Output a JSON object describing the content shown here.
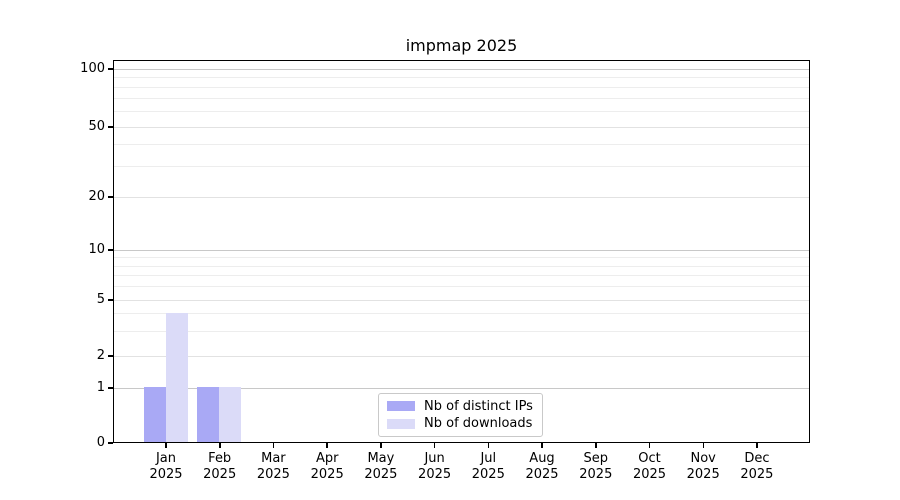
{
  "chart_data": {
    "type": "bar",
    "title": "impmap 2025",
    "categories": [
      "Jan",
      "Feb",
      "Mar",
      "Apr",
      "May",
      "Jun",
      "Jul",
      "Aug",
      "Sep",
      "Oct",
      "Nov",
      "Dec"
    ],
    "year": "2025",
    "series": [
      {
        "name": "Nb of distinct IPs",
        "color": "#a9a9f5",
        "values": [
          1,
          1,
          0,
          0,
          0,
          0,
          0,
          0,
          0,
          0,
          0,
          0
        ]
      },
      {
        "name": "Nb of downloads",
        "color": "#dbdbf8",
        "values": [
          4,
          1,
          0,
          0,
          0,
          0,
          0,
          0,
          0,
          0,
          0,
          0
        ]
      }
    ],
    "xlabel": "",
    "ylabel": "",
    "yaxis": {
      "scale": "log-like",
      "range": [
        0,
        100
      ],
      "ticks": [
        0,
        1,
        2,
        5,
        10,
        20,
        50,
        100
      ],
      "minor_ticks": [
        3,
        4,
        6,
        7,
        8,
        9,
        30,
        40,
        60,
        70,
        80,
        90
      ],
      "decade_ticks": [
        1,
        10,
        100
      ]
    },
    "grid": true,
    "legend": {
      "position": "inside-bottom-center"
    },
    "colors": {
      "grid_major": "#c8c8c8",
      "grid_mid": "#e2e2e2",
      "grid_minor": "#ededed",
      "axis": "#000000",
      "background": "#ffffff"
    }
  }
}
